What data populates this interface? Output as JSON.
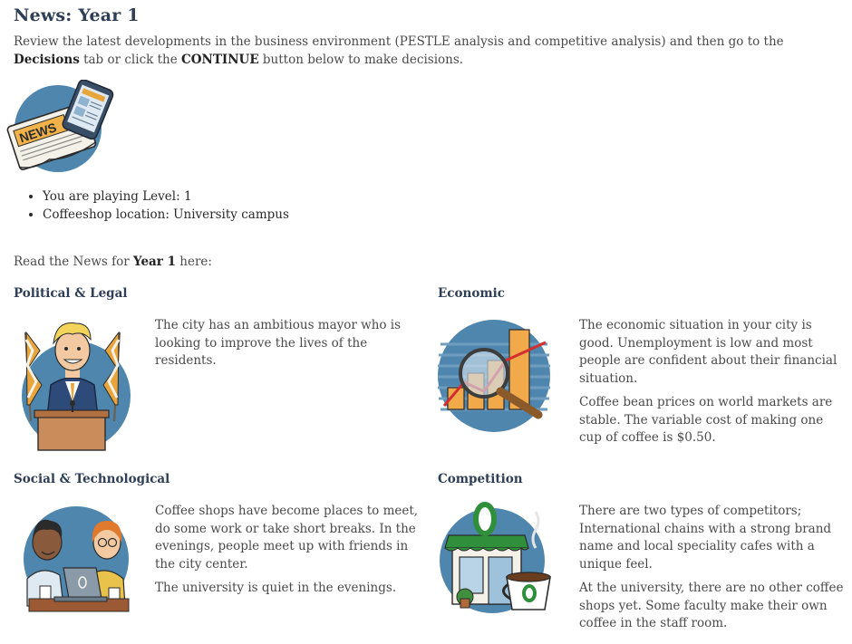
{
  "header": {
    "title": "News: Year 1",
    "intro_part1": "Review the latest developments in the business environment (PESTLE analysis and competitive analysis) and then go to the ",
    "intro_decisions": "Decisions",
    "intro_part2": " tab or click the ",
    "intro_continue": "CONTINUE",
    "intro_part3": " button below to make decisions."
  },
  "info": {
    "level": "You are playing Level: 1",
    "location": "Coffeeshop location: University campus"
  },
  "read_line": {
    "prefix": "Read the News for ",
    "year": "Year 1",
    "suffix": " here:"
  },
  "sections": {
    "political": {
      "title": "Political & Legal",
      "paragraphs": [
        "The city has an ambitious mayor who is looking to improve the lives of the residents."
      ]
    },
    "economic": {
      "title": "Economic",
      "paragraphs": [
        "The economic situation in your city is good. Unemployment is low and most people are confident about their financial situation.",
        "Coffee bean prices on world markets are stable. The variable cost of making one cup of coffee is $0.50."
      ]
    },
    "social": {
      "title": "Social & Technological",
      "paragraphs": [
        "Coffee shops have become places to meet, do some work or take short breaks. In the evenings, people meet up with friends in the city center.",
        "The university is quiet in the evenings."
      ]
    },
    "competition": {
      "title": "Competition",
      "paragraphs": [
        "There are two types of competitors; International chains with a strong brand name and local speciality cafes with a unique feel.",
        "At the university, there are no other coffee shops yet. Some faculty make their own coffee in the staff room."
      ]
    }
  },
  "illustrations": {
    "newspaper_banner": "NEWS",
    "colors": {
      "circle_blue": "#4f86ad",
      "title_navy": "#2d3e56",
      "accent_orange": "#e8a53c",
      "brand_green": "#2f8f3a"
    }
  }
}
